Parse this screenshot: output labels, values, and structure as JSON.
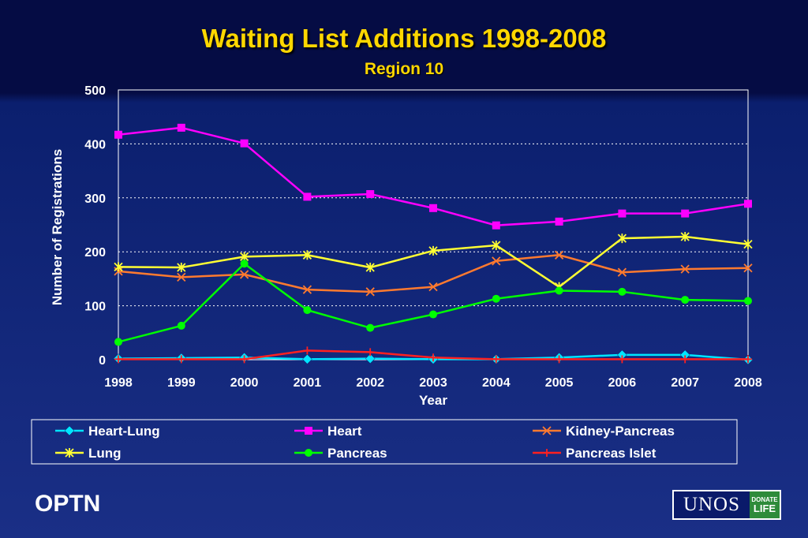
{
  "slide": {
    "title": "Waiting List Additions 1998-2008",
    "subtitle": "Region 10",
    "footer_brand": "OPTN",
    "logo": {
      "primary": "UNOS",
      "badge_line1": "DONATE",
      "badge_line2": "LIFE"
    }
  },
  "chart_data": {
    "type": "line",
    "title": "Waiting List Additions 1998-2008",
    "subtitle": "Region 10",
    "xlabel": "Year",
    "ylabel": "Number of Registrations",
    "x": [
      "1998",
      "1999",
      "2000",
      "2001",
      "2002",
      "2003",
      "2004",
      "2005",
      "2006",
      "2007",
      "2008"
    ],
    "ylim": [
      0,
      500
    ],
    "yticks": [
      0,
      100,
      200,
      300,
      400,
      500
    ],
    "grid": "horizontal dotted",
    "legend_position": "bottom",
    "series": [
      {
        "name": "Heart-Lung",
        "color": "#00e5ff",
        "marker": "diamond",
        "values": [
          2,
          3,
          4,
          1,
          2,
          1,
          1,
          4,
          9,
          9,
          0
        ]
      },
      {
        "name": "Heart",
        "color": "#ff00ff",
        "marker": "square",
        "values": [
          417,
          430,
          401,
          302,
          307,
          281,
          249,
          256,
          271,
          271,
          289
        ]
      },
      {
        "name": "Kidney-Pancreas",
        "color": "#ff7a2f",
        "marker": "x",
        "values": [
          164,
          153,
          158,
          130,
          126,
          135,
          183,
          194,
          162,
          168,
          170
        ]
      },
      {
        "name": "Lung",
        "color": "#ffff33",
        "marker": "star",
        "values": [
          172,
          171,
          191,
          194,
          171,
          202,
          212,
          135,
          225,
          228,
          214
        ]
      },
      {
        "name": "Pancreas",
        "color": "#00ff00",
        "marker": "circle",
        "values": [
          33,
          63,
          178,
          92,
          59,
          84,
          113,
          128,
          126,
          111,
          109
        ]
      },
      {
        "name": "Pancreas Islet",
        "color": "#ff2020",
        "marker": "plus",
        "values": [
          1,
          1,
          1,
          17,
          14,
          4,
          1,
          1,
          1,
          1,
          1
        ]
      }
    ]
  }
}
